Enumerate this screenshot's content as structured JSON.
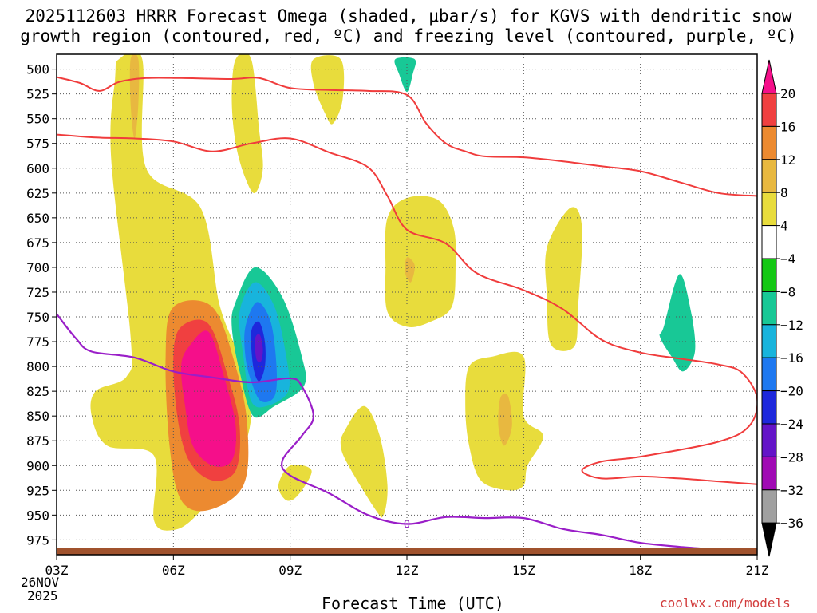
{
  "title_line1": "2025112603 HRRR Forecast Omega (shaded, μbar/s) for KGVS with dendritic snow",
  "title_line2": "growth region (contoured, red, ºC) and freezing level (contoured, purple, ºC)",
  "xlabel": "Forecast Time (UTC)",
  "watermark": "coolwx.com/models",
  "date_label_day": "26NOV",
  "date_label_year": "2025",
  "freezing_label": "0",
  "colors": {
    "dgz_line": "#f03c3c",
    "freezing_line": "#9a1ec8",
    "ground": "#a0522d",
    "watermark": "#d23c3c"
  },
  "chart_data": {
    "type": "time-height contour",
    "x_unit": "forecast hour offset from 03Z",
    "xlim": [
      0,
      18
    ],
    "ylim": [
      485,
      990
    ],
    "y_unit": "hPa",
    "x_ticks": [
      {
        "x": 0,
        "label": "03Z"
      },
      {
        "x": 3,
        "label": "06Z"
      },
      {
        "x": 6,
        "label": "09Z"
      },
      {
        "x": 9,
        "label": "12Z"
      },
      {
        "x": 12,
        "label": "15Z"
      },
      {
        "x": 15,
        "label": "18Z"
      },
      {
        "x": 18,
        "label": "21Z"
      }
    ],
    "y_ticks": [
      500,
      525,
      550,
      575,
      600,
      625,
      650,
      675,
      700,
      725,
      750,
      775,
      800,
      825,
      850,
      875,
      900,
      925,
      950,
      975
    ],
    "colorbar": {
      "levels": [
        20,
        16,
        12,
        8,
        4,
        -4,
        -8,
        -12,
        -16,
        -20,
        -24,
        -28,
        -32,
        -36
      ],
      "colors": [
        "#f50f8a",
        "#f04040",
        "#ec8a30",
        "#e8b840",
        "#e8dc3c",
        "#ffffff",
        "#14c814",
        "#18c896",
        "#18b4dc",
        "#1e78f0",
        "#1e28dc",
        "#6414c8",
        "#a00ab4",
        "#a0a0a0",
        "#000000"
      ]
    },
    "shaded_regions": [
      {
        "name": "yellow-band-column",
        "level": 4,
        "points": [
          [
            1.6,
            490
          ],
          [
            2.2,
            490
          ],
          [
            2.3,
            600
          ],
          [
            3.7,
            640
          ],
          [
            4.2,
            740
          ],
          [
            4.8,
            800
          ],
          [
            5.0,
            850
          ],
          [
            4.6,
            900
          ],
          [
            3.6,
            950
          ],
          [
            3.0,
            965
          ],
          [
            2.5,
            955
          ],
          [
            2.5,
            890
          ],
          [
            1.3,
            880
          ],
          [
            0.9,
            850
          ],
          [
            1.0,
            825
          ],
          [
            1.8,
            810
          ],
          [
            1.9,
            770
          ],
          [
            1.4,
            590
          ],
          [
            1.5,
            510
          ]
        ]
      },
      {
        "name": "orange-upper-streak",
        "level": 8,
        "points": [
          [
            1.9,
            490
          ],
          [
            2.1,
            490
          ],
          [
            2.1,
            535
          ],
          [
            2.0,
            570
          ],
          [
            1.9,
            535
          ]
        ]
      },
      {
        "name": "core-orange",
        "level": 12,
        "points": [
          [
            3.0,
            740
          ],
          [
            4.0,
            740
          ],
          [
            4.6,
            800
          ],
          [
            4.9,
            860
          ],
          [
            4.8,
            920
          ],
          [
            3.9,
            945
          ],
          [
            3.2,
            935
          ],
          [
            2.9,
            880
          ],
          [
            2.8,
            790
          ]
        ]
      },
      {
        "name": "core-red",
        "level": 16,
        "points": [
          [
            3.2,
            760
          ],
          [
            3.9,
            757
          ],
          [
            4.4,
            810
          ],
          [
            4.7,
            860
          ],
          [
            4.6,
            905
          ],
          [
            4.0,
            915
          ],
          [
            3.4,
            895
          ],
          [
            3.1,
            850
          ],
          [
            3.0,
            790
          ]
        ]
      },
      {
        "name": "core-magenta",
        "level": 20,
        "points": [
          [
            3.4,
            780
          ],
          [
            3.9,
            765
          ],
          [
            4.3,
            810
          ],
          [
            4.6,
            860
          ],
          [
            4.5,
            895
          ],
          [
            4.0,
            900
          ],
          [
            3.5,
            880
          ],
          [
            3.3,
            840
          ],
          [
            3.2,
            800
          ]
        ]
      },
      {
        "name": "yellow-upper-streak-08z",
        "level": 4,
        "points": [
          [
            4.6,
            490
          ],
          [
            5.0,
            490
          ],
          [
            5.2,
            560
          ],
          [
            5.3,
            600
          ],
          [
            5.1,
            625
          ],
          [
            4.85,
            610
          ],
          [
            4.6,
            575
          ],
          [
            4.5,
            530
          ]
        ]
      },
      {
        "name": "green-blob-08z",
        "level": -8,
        "points": [
          [
            4.6,
            735
          ],
          [
            5.1,
            700
          ],
          [
            5.8,
            730
          ],
          [
            6.3,
            790
          ],
          [
            6.35,
            820
          ],
          [
            5.6,
            840
          ],
          [
            5.05,
            850
          ],
          [
            4.7,
            805
          ],
          [
            4.5,
            760
          ]
        ]
      },
      {
        "name": "teal-blob-08z",
        "level": -12,
        "points": [
          [
            4.7,
            745
          ],
          [
            5.1,
            715
          ],
          [
            5.6,
            740
          ],
          [
            5.9,
            790
          ],
          [
            5.95,
            825
          ],
          [
            5.4,
            840
          ],
          [
            5.0,
            835
          ],
          [
            4.8,
            790
          ]
        ]
      },
      {
        "name": "cyan-blob-08z",
        "level": -16,
        "points": [
          [
            4.85,
            760
          ],
          [
            5.15,
            735
          ],
          [
            5.5,
            755
          ],
          [
            5.65,
            800
          ],
          [
            5.6,
            830
          ],
          [
            5.25,
            835
          ],
          [
            5.0,
            815
          ],
          [
            4.85,
            790
          ]
        ]
      },
      {
        "name": "blue-blob-08z",
        "level": -20,
        "points": [
          [
            5.0,
            765
          ],
          [
            5.2,
            755
          ],
          [
            5.35,
            775
          ],
          [
            5.35,
            800
          ],
          [
            5.2,
            815
          ],
          [
            5.05,
            800
          ]
        ]
      },
      {
        "name": "darkblue-blob-08z",
        "level": -24,
        "points": [
          [
            5.1,
            772
          ],
          [
            5.22,
            768
          ],
          [
            5.3,
            782
          ],
          [
            5.25,
            795
          ],
          [
            5.13,
            792
          ]
        ]
      },
      {
        "name": "yellow-upper-streak-10z",
        "level": 4,
        "points": [
          [
            6.6,
            490
          ],
          [
            7.3,
            490
          ],
          [
            7.35,
            530
          ],
          [
            7.1,
            555
          ],
          [
            6.9,
            545
          ],
          [
            6.6,
            515
          ]
        ]
      },
      {
        "name": "green-upper-12z",
        "level": -8,
        "points": [
          [
            8.7,
            490
          ],
          [
            9.2,
            490
          ],
          [
            9.15,
            505
          ],
          [
            9.0,
            523
          ],
          [
            8.8,
            505
          ]
        ]
      },
      {
        "name": "yellow-blob-12z",
        "level": 4,
        "points": [
          [
            8.5,
            650
          ],
          [
            9.0,
            630
          ],
          [
            9.8,
            632
          ],
          [
            10.2,
            660
          ],
          [
            10.25,
            700
          ],
          [
            10.15,
            740
          ],
          [
            9.6,
            755
          ],
          [
            9.0,
            760
          ],
          [
            8.5,
            745
          ],
          [
            8.45,
            700
          ]
        ]
      },
      {
        "name": "orange-dot-12z",
        "level": 8,
        "points": [
          [
            9.0,
            690
          ],
          [
            9.2,
            698
          ],
          [
            9.1,
            715
          ],
          [
            8.95,
            705
          ]
        ]
      },
      {
        "name": "yellow-blob-09z",
        "level": 4,
        "points": [
          [
            5.7,
            920
          ],
          [
            6.0,
            900
          ],
          [
            6.55,
            905
          ],
          [
            6.2,
            930
          ],
          [
            5.9,
            935
          ]
        ]
      },
      {
        "name": "yellow-blob-11z",
        "level": 4,
        "points": [
          [
            7.4,
            865
          ],
          [
            7.9,
            840
          ],
          [
            8.3,
            870
          ],
          [
            8.5,
            920
          ],
          [
            8.4,
            950
          ],
          [
            8.2,
            945
          ],
          [
            7.5,
            900
          ],
          [
            7.3,
            880
          ]
        ]
      },
      {
        "name": "yellow-blob-14z",
        "level": 4,
        "points": [
          [
            10.5,
            840
          ],
          [
            10.6,
            800
          ],
          [
            11.2,
            790
          ],
          [
            12.0,
            790
          ],
          [
            12.0,
            850
          ],
          [
            12.5,
            870
          ],
          [
            12.1,
            900
          ],
          [
            12.0,
            920
          ],
          [
            11.6,
            925
          ],
          [
            10.9,
            915
          ],
          [
            10.6,
            880
          ]
        ]
      },
      {
        "name": "orange-dot-14z",
        "level": 8,
        "points": [
          [
            11.4,
            832
          ],
          [
            11.6,
            830
          ],
          [
            11.7,
            860
          ],
          [
            11.5,
            880
          ],
          [
            11.35,
            860
          ]
        ]
      },
      {
        "name": "yellow-streak-16z",
        "level": 4,
        "points": [
          [
            12.6,
            680
          ],
          [
            13.2,
            640
          ],
          [
            13.5,
            660
          ],
          [
            13.4,
            740
          ],
          [
            13.3,
            780
          ],
          [
            12.7,
            778
          ],
          [
            12.6,
            730
          ]
        ]
      },
      {
        "name": "green-blob-19z",
        "level": -8,
        "points": [
          [
            15.6,
            760
          ],
          [
            16.0,
            707
          ],
          [
            16.3,
            745
          ],
          [
            16.4,
            785
          ],
          [
            16.1,
            805
          ],
          [
            15.8,
            790
          ],
          [
            15.5,
            770
          ]
        ]
      }
    ],
    "dgz_lines": [
      {
        "name": "dgz-line-upper",
        "points": [
          [
            0,
            508
          ],
          [
            0.6,
            514
          ],
          [
            1.1,
            522
          ],
          [
            1.6,
            513
          ],
          [
            2.3,
            509
          ],
          [
            3.2,
            509
          ],
          [
            4.5,
            510
          ],
          [
            5.2,
            509
          ],
          [
            6.0,
            519
          ],
          [
            7.0,
            521
          ],
          [
            8.0,
            522
          ],
          [
            9.0,
            526
          ],
          [
            9.5,
            555
          ],
          [
            10.0,
            575
          ],
          [
            10.5,
            583
          ],
          [
            11.0,
            588
          ],
          [
            12.0,
            589
          ],
          [
            13.0,
            593
          ],
          [
            14.0,
            598
          ],
          [
            15.0,
            603
          ],
          [
            16.0,
            614
          ],
          [
            17.0,
            625
          ],
          [
            18.0,
            628
          ]
        ]
      },
      {
        "name": "dgz-line-lower",
        "points": [
          [
            0,
            566
          ],
          [
            1.0,
            569
          ],
          [
            2.0,
            570
          ],
          [
            3.0,
            573
          ],
          [
            4.0,
            583
          ],
          [
            5.0,
            575
          ],
          [
            6.0,
            570
          ],
          [
            7.0,
            584
          ],
          [
            8.0,
            599
          ],
          [
            8.5,
            628
          ],
          [
            9.0,
            662
          ],
          [
            10.0,
            676
          ],
          [
            10.8,
            706
          ],
          [
            12.0,
            723
          ],
          [
            13.0,
            742
          ],
          [
            14.0,
            773
          ],
          [
            15.0,
            786
          ],
          [
            16.0,
            792
          ],
          [
            17.0,
            798
          ],
          [
            17.6,
            806
          ],
          [
            18.0,
            832
          ],
          [
            17.8,
            860
          ],
          [
            17.0,
            876
          ],
          [
            15.0,
            891
          ],
          [
            14.0,
            896
          ],
          [
            13.5,
            905
          ],
          [
            14.0,
            913
          ],
          [
            15.0,
            911
          ],
          [
            16.0,
            913
          ],
          [
            17.0,
            916
          ],
          [
            18.0,
            919
          ]
        ]
      }
    ],
    "freezing_line": {
      "name": "freezing-level-line",
      "points": [
        [
          0,
          747
        ],
        [
          0.5,
          772
        ],
        [
          0.9,
          785
        ],
        [
          2.0,
          791
        ],
        [
          3.0,
          805
        ],
        [
          4.0,
          811
        ],
        [
          5.0,
          816
        ],
        [
          6.0,
          812
        ],
        [
          6.3,
          820
        ],
        [
          6.6,
          850
        ],
        [
          6.3,
          870
        ],
        [
          5.8,
          895
        ],
        [
          6.0,
          910
        ],
        [
          7.0,
          928
        ],
        [
          8.0,
          950
        ],
        [
          9.0,
          959
        ],
        [
          10.0,
          952
        ],
        [
          11.0,
          953
        ],
        [
          12.0,
          953
        ],
        [
          13.0,
          964
        ],
        [
          14.0,
          970
        ],
        [
          15.0,
          978
        ],
        [
          16.0,
          982
        ],
        [
          17.0,
          985
        ],
        [
          17.4,
          987
        ]
      ]
    },
    "ground": {
      "name": "ground-terrain",
      "top_hpa": 983,
      "bottom_hpa": 990
    }
  }
}
